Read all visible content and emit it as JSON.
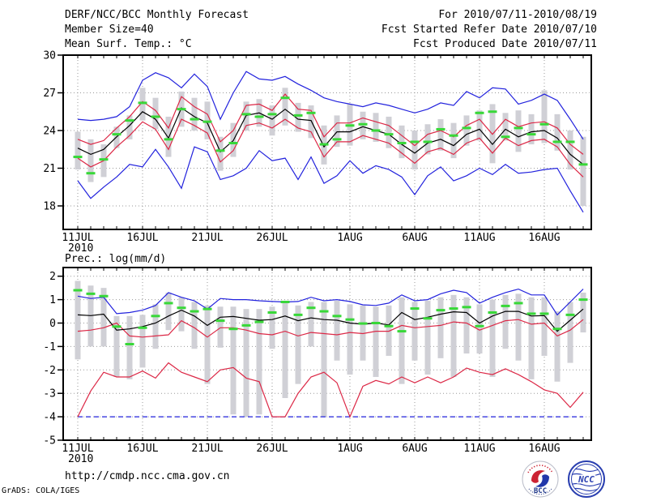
{
  "header": {
    "title": "DERF/NCC/BCC Monthly Forecast",
    "for_range": "For 2010/07/11-2010/08/19",
    "member_size": "Member Size=40",
    "temp_label": "Mean Surf. Temp.: °C",
    "fcst_started": "Fcst Started Refer Date 2010/07/10",
    "fcst_produced": "Fcst Produced Date 2010/07/11"
  },
  "footer": {
    "url": "http://cmdp.ncc.cma.gov.cn",
    "credit": "GrADS: COLA/IGES"
  },
  "logos": {
    "bcc": "BCC",
    "ncc": "NCC"
  },
  "colors": {
    "black": "#000000",
    "blue": "#2222dd",
    "red": "#dc2846",
    "green": "#38d838",
    "bar": "#d0d0d6",
    "grid": "#999999",
    "axis": "#000000"
  },
  "chart_data": [
    {
      "type": "line",
      "panel": "temp",
      "title": "Mean Surf. Temp.: °C",
      "n_days": 40,
      "ylim": [
        16.1,
        30
      ],
      "y_ticks": [
        30,
        27,
        24,
        21,
        18
      ],
      "x_ticks": [
        {
          "day": 0,
          "label": "11JUL"
        },
        {
          "day": 5,
          "label": "16JUL"
        },
        {
          "day": 10,
          "label": "21JUL"
        },
        {
          "day": 15,
          "label": "26JUL"
        },
        {
          "day": 21,
          "label": "1AUG"
        },
        {
          "day": 26,
          "label": "6AUG"
        },
        {
          "day": 31,
          "label": "11AUG"
        },
        {
          "day": 36,
          "label": "16AUG"
        }
      ],
      "year_label": "2010",
      "series": [
        {
          "name": "blue_upper",
          "color": "blue",
          "dashed": false,
          "values": [
            24.9,
            24.8,
            24.9,
            25.1,
            25.9,
            28.0,
            28.6,
            28.2,
            27.4,
            28.5,
            27.5,
            24.9,
            27.0,
            28.7,
            28.1,
            28.0,
            28.3,
            27.7,
            27.2,
            26.6,
            26.3,
            26.1,
            25.9,
            26.2,
            26.0,
            25.7,
            25.4,
            25.7,
            26.2,
            26.0,
            27.1,
            26.6,
            27.4,
            27.3,
            26.1,
            26.4,
            26.9,
            26.4,
            24.9,
            23.3
          ]
        },
        {
          "name": "blue_lower",
          "color": "blue",
          "dashed": false,
          "values": [
            20.0,
            18.6,
            19.5,
            20.3,
            21.3,
            21.1,
            22.5,
            21.1,
            19.4,
            22.7,
            22.3,
            20.1,
            20.4,
            21.0,
            22.4,
            21.6,
            21.8,
            20.1,
            21.9,
            19.8,
            20.4,
            21.6,
            20.6,
            21.2,
            20.9,
            20.3,
            18.9,
            20.4,
            21.1,
            20.0,
            20.4,
            21.0,
            20.5,
            21.3,
            20.6,
            20.7,
            20.9,
            21.0,
            19.2,
            17.5
          ]
        },
        {
          "name": "red_upper",
          "color": "red",
          "dashed": false,
          "values": [
            23.3,
            22.9,
            23.2,
            24.2,
            25.1,
            26.3,
            25.6,
            24.2,
            26.7,
            25.9,
            25.3,
            23.1,
            24.0,
            26.0,
            26.1,
            25.6,
            26.9,
            25.7,
            25.6,
            23.5,
            24.6,
            24.6,
            25.0,
            24.7,
            24.4,
            23.6,
            22.8,
            23.7,
            24.0,
            23.5,
            24.4,
            24.9,
            23.7,
            24.9,
            24.3,
            24.6,
            24.7,
            24.2,
            22.9,
            22.1
          ]
        },
        {
          "name": "red_lower",
          "color": "red",
          "dashed": false,
          "values": [
            21.8,
            21.1,
            21.6,
            22.7,
            23.6,
            24.7,
            24.1,
            22.5,
            24.9,
            24.4,
            23.8,
            21.5,
            22.4,
            24.4,
            24.6,
            24.2,
            24.9,
            24.2,
            23.9,
            21.9,
            23.1,
            23.1,
            23.6,
            23.3,
            23.0,
            22.2,
            21.4,
            22.3,
            22.6,
            22.1,
            23.0,
            23.4,
            22.2,
            23.4,
            22.8,
            23.2,
            23.3,
            22.7,
            21.3,
            20.3
          ]
        },
        {
          "name": "ensemble_mean",
          "color": "black",
          "dashed": false,
          "values": [
            22.6,
            22.1,
            22.5,
            23.5,
            24.4,
            25.5,
            24.9,
            23.4,
            25.8,
            25.1,
            24.6,
            22.3,
            23.2,
            25.2,
            25.4,
            24.9,
            25.7,
            24.9,
            24.8,
            22.7,
            23.9,
            23.9,
            24.3,
            24.0,
            23.7,
            22.9,
            22.2,
            23.0,
            23.3,
            22.8,
            23.7,
            24.1,
            22.9,
            24.1,
            23.5,
            23.9,
            24.0,
            23.4,
            22.1,
            21.3
          ]
        }
      ],
      "observation_dashes": {
        "color": "green",
        "values": [
          21.9,
          20.6,
          21.7,
          23.7,
          24.8,
          26.2,
          25.1,
          23.3,
          25.7,
          24.9,
          24.7,
          22.4,
          23.0,
          25.3,
          25.1,
          25.3,
          26.6,
          25.2,
          25.4,
          22.9,
          23.3,
          24.4,
          24.5,
          24.0,
          23.7,
          23.0,
          23.1,
          23.1,
          24.1,
          23.6,
          24.2,
          25.4,
          25.5,
          23.5,
          24.2,
          23.7,
          24.5,
          23.1,
          23.1,
          21.3
        ]
      },
      "spread_bars": {
        "color": "bar",
        "top": [
          23.9,
          23.3,
          22.9,
          24.3,
          25.2,
          27.4,
          26.6,
          25.1,
          27.1,
          26.6,
          26.3,
          23.5,
          24.6,
          26.3,
          26.5,
          26.0,
          27.4,
          26.2,
          26.0,
          24.4,
          25.2,
          26.1,
          25.5,
          25.4,
          25.1,
          24.4,
          24.0,
          24.5,
          24.9,
          24.6,
          25.2,
          25.6,
          26.1,
          25.4,
          25.6,
          25.3,
          27.2,
          25.3,
          24.0,
          23.5
        ],
        "bottom": [
          20.9,
          19.9,
          20.3,
          22.6,
          23.3,
          24.8,
          24.1,
          21.9,
          24.3,
          24.0,
          23.3,
          20.8,
          21.9,
          24.0,
          24.3,
          23.6,
          24.4,
          23.9,
          23.4,
          21.3,
          22.7,
          22.8,
          23.3,
          23.1,
          22.6,
          21.8,
          20.9,
          22.1,
          22.4,
          21.8,
          22.8,
          23.2,
          21.4,
          23.2,
          22.3,
          22.9,
          23.0,
          22.4,
          20.9,
          18.0
        ]
      }
    },
    {
      "type": "line",
      "panel": "prec",
      "title": "Prec.: log(mm/d)",
      "n_days": 40,
      "ylim": [
        -5,
        2.4
      ],
      "y_ticks": [
        2,
        1,
        0,
        -1,
        -2,
        -3,
        -4,
        -5
      ],
      "x_ticks": [
        {
          "day": 0,
          "label": "11JUL"
        },
        {
          "day": 5,
          "label": "16JUL"
        },
        {
          "day": 10,
          "label": "21JUL"
        },
        {
          "day": 15,
          "label": "26JUL"
        },
        {
          "day": 21,
          "label": "1AUG"
        },
        {
          "day": 26,
          "label": "6AUG"
        },
        {
          "day": 31,
          "label": "11AUG"
        },
        {
          "day": 36,
          "label": "16AUG"
        }
      ],
      "year_label": "2010",
      "series": [
        {
          "name": "blue_upper",
          "color": "blue",
          "dashed": false,
          "values": [
            1.15,
            1.05,
            1.1,
            0.4,
            0.45,
            0.55,
            0.75,
            1.3,
            1.1,
            0.95,
            0.6,
            1.05,
            1.0,
            1.0,
            0.95,
            0.92,
            0.9,
            0.92,
            1.1,
            0.95,
            1.0,
            0.92,
            0.78,
            0.75,
            0.85,
            1.2,
            0.95,
            1.0,
            1.25,
            1.4,
            1.3,
            0.85,
            1.1,
            1.3,
            1.45,
            1.2,
            1.2,
            0.35,
            0.9,
            1.45
          ]
        },
        {
          "name": "blue_lower",
          "color": "blue",
          "dashed": true,
          "values": [
            -4.0,
            -4.0,
            -4.0,
            -4.0,
            -4.0,
            -4.0,
            -4.0,
            -4.0,
            -4.0,
            -4.0,
            -4.0,
            -4.0,
            -4.0,
            -4.0,
            -4.0,
            -4.0,
            -4.0,
            -4.0,
            -4.0,
            -4.0,
            -4.0,
            -4.0,
            -4.0,
            -4.0,
            -4.0,
            -4.0,
            -4.0,
            -4.0,
            -4.0,
            -4.0,
            -4.0,
            -4.0,
            -4.0,
            -4.0,
            -4.0,
            -4.0,
            -4.0,
            -4.0,
            -4.0,
            -4.0
          ]
        },
        {
          "name": "red_upper",
          "color": "red",
          "dashed": false,
          "values": [
            -0.35,
            -0.3,
            -0.2,
            0.0,
            -0.55,
            -0.6,
            -0.55,
            -0.5,
            0.1,
            -0.2,
            -0.6,
            -0.2,
            -0.2,
            -0.3,
            -0.45,
            -0.5,
            -0.35,
            -0.55,
            -0.4,
            -0.45,
            -0.5,
            -0.4,
            -0.45,
            -0.35,
            -0.35,
            -0.1,
            -0.2,
            -0.15,
            -0.1,
            0.05,
            0.0,
            -0.3,
            -0.1,
            0.1,
            0.15,
            -0.05,
            0.0,
            -0.55,
            -0.3,
            0.15
          ]
        },
        {
          "name": "red_lower",
          "color": "red",
          "dashed": false,
          "values": [
            -4.0,
            -2.9,
            -2.1,
            -2.3,
            -2.3,
            -2.05,
            -2.35,
            -1.7,
            -2.1,
            -2.3,
            -2.5,
            -2.0,
            -1.9,
            -2.35,
            -2.5,
            -4.0,
            -4.0,
            -3.0,
            -2.3,
            -2.1,
            -2.55,
            -4.0,
            -2.7,
            -2.45,
            -2.6,
            -2.3,
            -2.55,
            -2.3,
            -2.55,
            -2.3,
            -1.92,
            -2.1,
            -2.2,
            -1.95,
            -2.2,
            -2.5,
            -2.85,
            -3.0,
            -3.6,
            -2.95
          ]
        },
        {
          "name": "ensemble_mean",
          "color": "black",
          "dashed": false,
          "values": [
            0.35,
            0.32,
            0.38,
            -0.3,
            -0.25,
            -0.15,
            0.0,
            0.3,
            0.55,
            0.3,
            -0.1,
            0.25,
            0.28,
            0.2,
            0.12,
            0.15,
            0.3,
            0.1,
            0.22,
            0.15,
            0.12,
            0.0,
            -0.05,
            0.0,
            -0.08,
            0.45,
            0.15,
            0.25,
            0.38,
            0.48,
            0.45,
            0.0,
            0.3,
            0.5,
            0.5,
            0.3,
            0.32,
            -0.35,
            0.12,
            0.6
          ]
        }
      ],
      "observation_dashes": {
        "color": "green",
        "values": [
          1.4,
          1.25,
          1.15,
          -0.15,
          -0.9,
          -0.2,
          0.3,
          0.85,
          0.65,
          0.5,
          0.6,
          0.1,
          -0.25,
          -0.1,
          0.05,
          0.45,
          0.9,
          0.35,
          0.65,
          0.5,
          0.3,
          0.15,
          -0.02,
          0.0,
          -0.13,
          -0.35,
          0.62,
          0.2,
          0.55,
          0.62,
          0.68,
          -0.13,
          0.45,
          0.73,
          0.85,
          0.4,
          0.4,
          -0.25,
          0.35,
          1.0
        ]
      },
      "spread_bars": {
        "color": "bar",
        "top": [
          1.8,
          1.6,
          1.5,
          0.3,
          0.3,
          0.35,
          0.8,
          1.3,
          1.1,
          0.9,
          0.75,
          0.7,
          0.7,
          0.6,
          0.6,
          0.7,
          0.9,
          0.75,
          0.9,
          0.9,
          0.95,
          0.8,
          0.75,
          0.7,
          0.75,
          1.1,
          0.9,
          0.95,
          1.1,
          1.2,
          1.1,
          0.8,
          1.0,
          1.2,
          1.25,
          1.1,
          1.1,
          0.5,
          0.9,
          1.3
        ],
        "bottom": [
          -1.55,
          -1.0,
          -1.0,
          -2.3,
          -2.4,
          -1.9,
          -1.1,
          -0.3,
          -0.35,
          -1.1,
          -2.6,
          -1.05,
          -3.9,
          -4.0,
          -3.9,
          -1.1,
          -3.2,
          -2.6,
          -1.0,
          -4.0,
          -1.6,
          -2.2,
          -1.6,
          -2.3,
          -1.4,
          -2.6,
          -1.6,
          -2.2,
          -1.5,
          -2.3,
          -1.3,
          -1.3,
          -2.3,
          -1.1,
          -1.6,
          -2.4,
          -1.4,
          -2.5,
          -1.7,
          -0.4
        ]
      }
    }
  ]
}
